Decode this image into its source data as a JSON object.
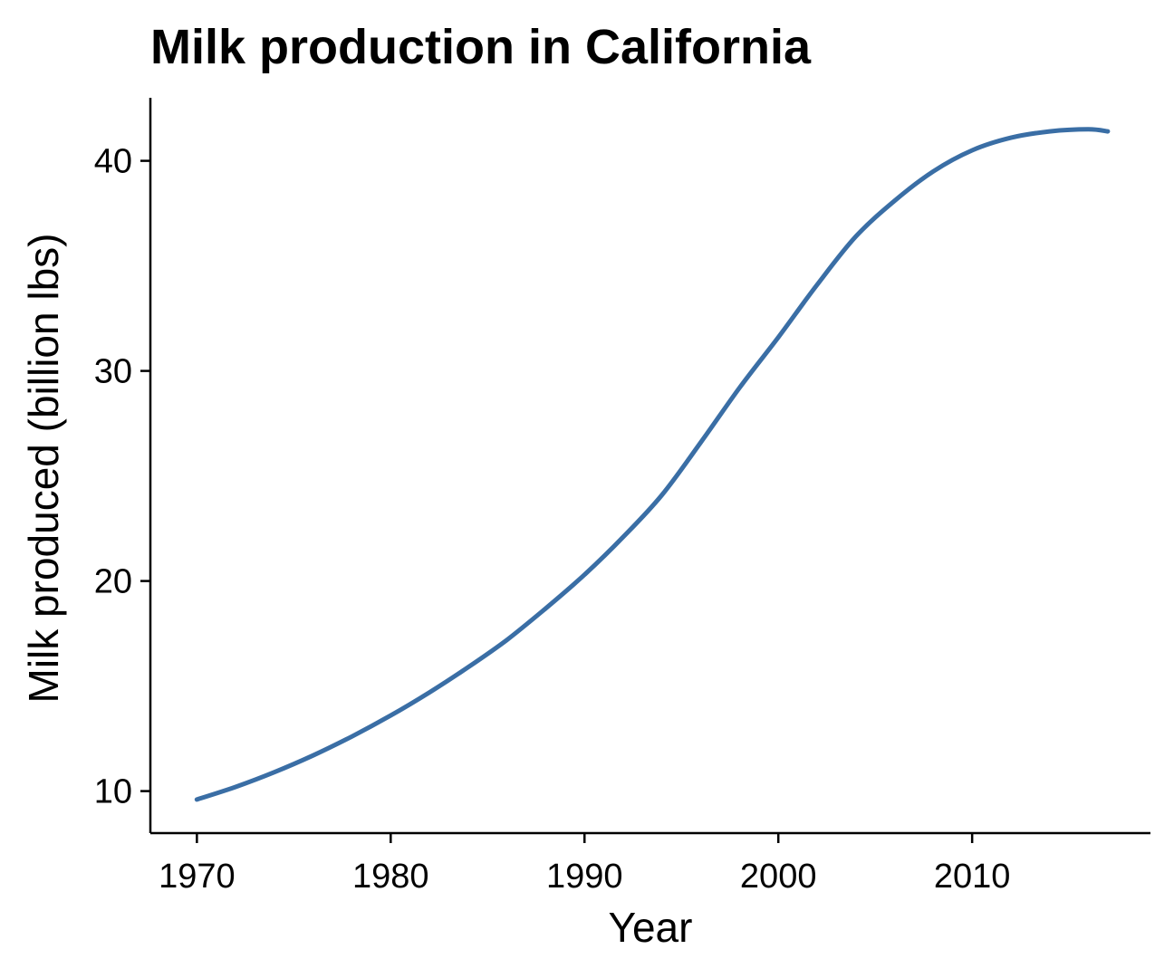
{
  "chart_data": {
    "type": "line",
    "title": "Milk production in California",
    "xlabel": "Year",
    "ylabel": "Milk produced (billion lbs)",
    "xlim": [
      1967.6,
      2019.2
    ],
    "ylim": [
      8.0,
      43.0
    ],
    "x_ticks": [
      1970,
      1980,
      1990,
      2000,
      2010
    ],
    "y_ticks": [
      10,
      20,
      30,
      40
    ],
    "grid": false,
    "legend": "none",
    "series": [
      {
        "color": "#3a6ea5",
        "x": [
          1970,
          1972,
          1974,
          1976,
          1978,
          1980,
          1982,
          1984,
          1986,
          1988,
          1990,
          1992,
          1994,
          1996,
          1998,
          2000,
          2002,
          2004,
          2006,
          2008,
          2010,
          2012,
          2014,
          2016,
          2017
        ],
        "y": [
          9.6,
          10.2,
          10.9,
          11.7,
          12.6,
          13.6,
          14.7,
          15.9,
          17.2,
          18.7,
          20.3,
          22.1,
          24.1,
          26.6,
          29.2,
          31.6,
          34.1,
          36.4,
          38.1,
          39.5,
          40.5,
          41.1,
          41.4,
          41.5,
          41.4
        ]
      }
    ]
  }
}
